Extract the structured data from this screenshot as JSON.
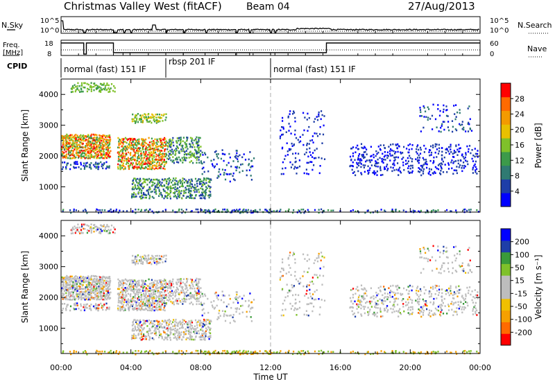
{
  "header": {
    "station": "Christmas Valley West (fitACF)",
    "beam": "Beam 04",
    "date": "27/Aug/2013"
  },
  "strip_labels": {
    "nsky": "N.Sky",
    "nsearch": "N.Search",
    "freq_line1": "Freq.",
    "freq_line2": "[MHz]",
    "nave": "Nave",
    "cpid": "CPID"
  },
  "noise_panel": {
    "left_ticks": [
      "10^5",
      "10^0"
    ],
    "right_ticks": [
      "10^5",
      "10^0"
    ]
  },
  "freq_panel": {
    "left_ticks": [
      "18",
      "8"
    ],
    "right_ticks": [
      "60",
      "0"
    ]
  },
  "cpid_segments": [
    {
      "label": "normal (fast) 151 IF",
      "start_hour": 0.0,
      "end_hour": 6.0
    },
    {
      "label": "rbsp 201 IF",
      "start_hour": 6.0,
      "end_hour": 12.0
    },
    {
      "label": "normal (fast) 151 IF",
      "start_hour": 12.0,
      "end_hour": 24.0
    }
  ],
  "chart_data": [
    {
      "type": "heatmap",
      "name": "Power",
      "ylabel": "Slant Range [km]",
      "xlabel": "Time UT",
      "xlim_hours": [
        0,
        24
      ],
      "ylim_km": [
        180,
        4500
      ],
      "y_ticks": [
        1000,
        2000,
        3000,
        4000
      ],
      "colorbar": {
        "label": "Power [dB]",
        "ticks": [
          "28",
          "24",
          "20",
          "16",
          "12",
          "8",
          "4"
        ],
        "colors": [
          "#0000ff",
          "#1e3ea8",
          "#2f7a72",
          "#3c9a4a",
          "#7fc12a",
          "#e8c000",
          "#f39a00",
          "#ff6a00",
          "#ff0000"
        ]
      }
    },
    {
      "type": "heatmap",
      "name": "Velocity",
      "ylabel": "Slant Range [km]",
      "xlabel": "Time UT",
      "xlim_hours": [
        0,
        24
      ],
      "ylim_km": [
        180,
        4500
      ],
      "y_ticks": [
        1000,
        2000,
        3000,
        4000
      ],
      "colorbar": {
        "label": "Velocity [m s⁻¹]",
        "ticks": [
          "200",
          "100",
          "50",
          "15",
          "-15",
          "-50",
          "-100",
          "-200"
        ],
        "colors": [
          "#ff0000",
          "#ff6a00",
          "#f5a000",
          "#f0c000",
          "#bdbdbd",
          "#bdbdbd",
          "#7fc12a",
          "#3a9a3a",
          "#1e3ea8",
          "#0000ff"
        ]
      }
    }
  ],
  "x_axis": {
    "ticks": [
      "00:00",
      "04:00",
      "08:00",
      "12:00",
      "16:00",
      "20:00",
      "00:00"
    ],
    "label": "Time UT"
  }
}
